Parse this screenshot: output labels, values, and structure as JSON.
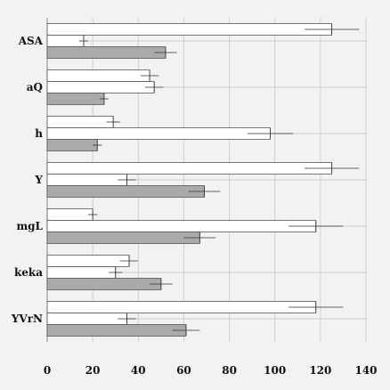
{
  "chart_data": {
    "type": "bar",
    "orientation": "horizontal",
    "categories": [
      "ASA",
      "aQ",
      "h",
      "Y",
      "mgL",
      "keka",
      "YVrN"
    ],
    "series": [
      {
        "values": [
          125,
          45,
          29,
          125,
          20,
          36,
          118
        ],
        "errors": [
          12,
          4,
          3,
          12,
          2,
          4,
          12
        ],
        "color": "#ffffff"
      },
      {
        "values": [
          16,
          47,
          98,
          35,
          118,
          30,
          35
        ],
        "errors": [
          2,
          4,
          10,
          4,
          12,
          3,
          4
        ],
        "color": "#ffffff"
      },
      {
        "values": [
          52,
          25,
          22,
          69,
          67,
          50,
          61
        ],
        "errors": [
          5,
          2,
          2,
          7,
          7,
          5,
          6
        ],
        "color": "#aaaaaa"
      }
    ],
    "xlim": [
      0,
      140
    ],
    "xticks": [
      0,
      20,
      40,
      60,
      80,
      100,
      120,
      140
    ],
    "grid": true,
    "title": "",
    "xlabel": "",
    "ylabel": ""
  }
}
